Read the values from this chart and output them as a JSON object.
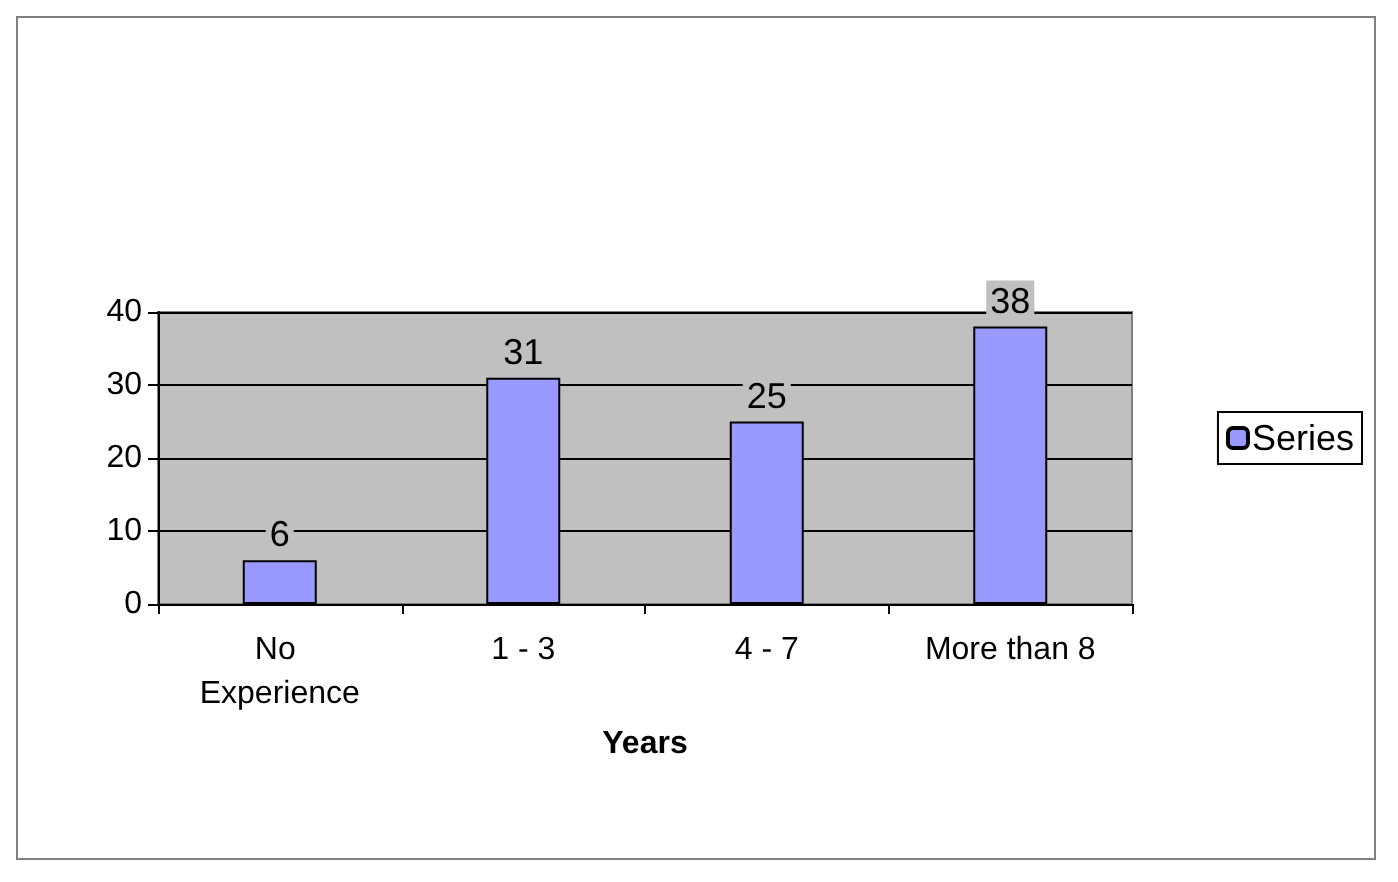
{
  "chart_data": {
    "type": "bar",
    "xlabel": "Years",
    "categories": [
      "No Experience",
      "1 - 3",
      "4 - 7",
      "More than 8"
    ],
    "series": [
      {
        "name": "Series",
        "color": "#9999ff",
        "values": [
          6,
          31,
          25,
          38
        ]
      }
    ],
    "ylim": [
      0,
      40
    ],
    "yticks": [
      0,
      10,
      20,
      30,
      40
    ],
    "grid": "y",
    "legend": "right",
    "data_labels": true
  }
}
